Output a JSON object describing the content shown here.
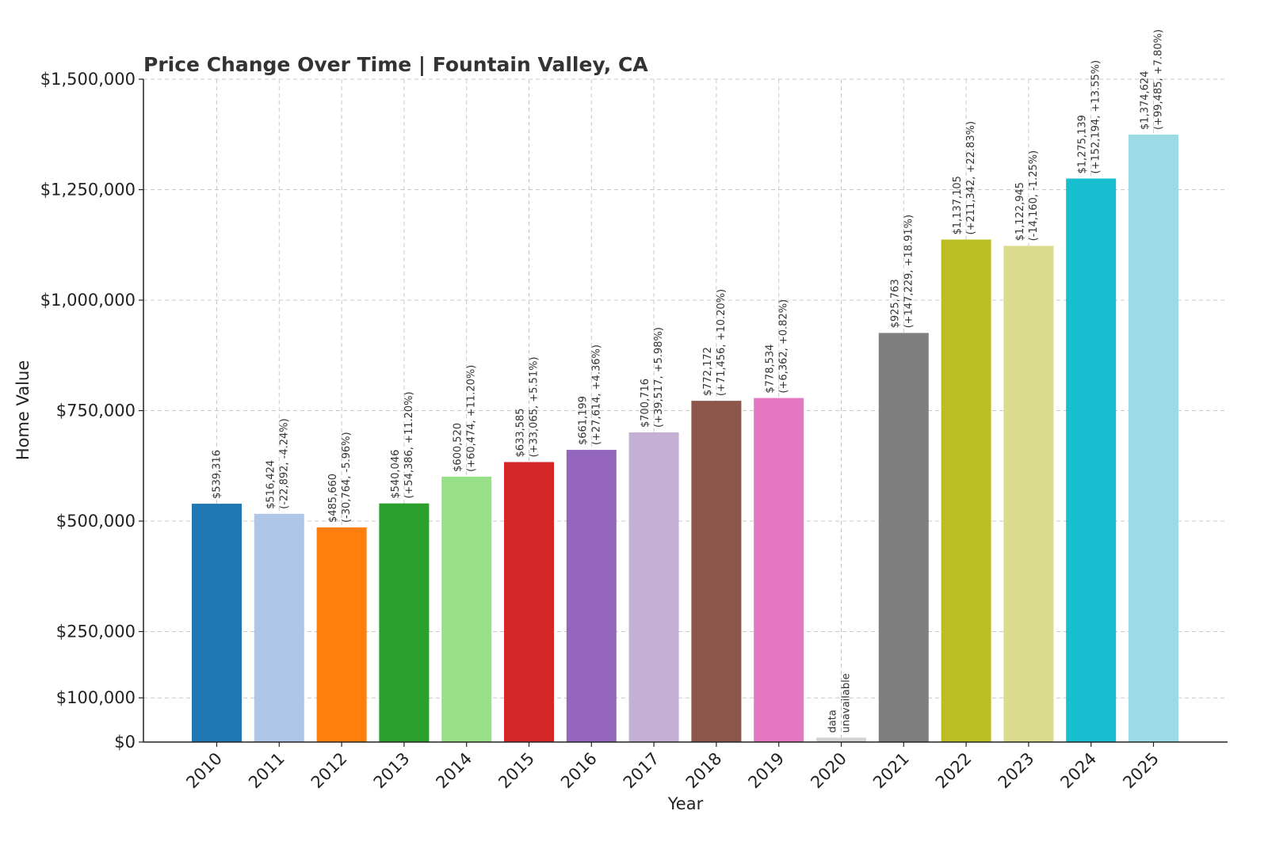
{
  "chart_data": {
    "type": "bar",
    "title": "Price Change Over Time | Fountain Valley, CA",
    "xlabel": "Year",
    "ylabel": "Home Value",
    "ylim": [
      0,
      1500000
    ],
    "yticks": [
      {
        "value": 0,
        "label": "$0"
      },
      {
        "value": 100000,
        "label": "$100,000"
      },
      {
        "value": 250000,
        "label": "$250,000"
      },
      {
        "value": 500000,
        "label": "$500,000"
      },
      {
        "value": 750000,
        "label": "$750,000"
      },
      {
        "value": 1000000,
        "label": "$1,000,000"
      },
      {
        "value": 1250000,
        "label": "$1,250,000"
      },
      {
        "value": 1500000,
        "label": "$1,500,000"
      }
    ],
    "grid": true,
    "categories": [
      "2010",
      "2011",
      "2012",
      "2013",
      "2014",
      "2015",
      "2016",
      "2017",
      "2018",
      "2019",
      "2020",
      "2021",
      "2022",
      "2023",
      "2024",
      "2025"
    ],
    "values": [
      539316,
      516424,
      485660,
      540046,
      600520,
      633585,
      661199,
      700716,
      772172,
      778534,
      null,
      925763,
      1137105,
      1122945,
      1275139,
      1374624
    ],
    "placeholder_value": 10000,
    "colors": [
      "#1f77b4",
      "#aec7e8",
      "#ff7f0e",
      "#2ca02c",
      "#98df8a",
      "#d62728",
      "#9467bd",
      "#c5b0d5",
      "#8c564b",
      "#e377c2",
      "#d3d3d3",
      "#7f7f7f",
      "#bcbd22",
      "#dbdb8d",
      "#17becf",
      "#9edae5"
    ],
    "labels": [
      [
        "$539,316"
      ],
      [
        "$516,424",
        "(-22,892, -4.24%)"
      ],
      [
        "$485,660",
        "(-30,764, -5.96%)"
      ],
      [
        "$540,046",
        "(+54,386, +11.20%)"
      ],
      [
        "$600,520",
        "(+60,474, +11.20%)"
      ],
      [
        "$633,585",
        "(+33,065, +5.51%)"
      ],
      [
        "$661,199",
        "(+27,614, +4.36%)"
      ],
      [
        "$700,716",
        "(+39,517, +5.98%)"
      ],
      [
        "$772,172",
        "(+71,456, +10.20%)"
      ],
      [
        "$778,534",
        "(+6,362, +0.82%)"
      ],
      [
        "data",
        "unavailable"
      ],
      [
        "$925,763",
        "(+147,229, +18.91%)"
      ],
      [
        "$1,137,105",
        "(+211,342, +22.83%)"
      ],
      [
        "$1,122,945",
        "(-14,160, -1.25%)"
      ],
      [
        "$1,275,139",
        "(+152,194, +13.55%)"
      ],
      [
        "$1,374,624",
        "(+99,485, +7.80%)"
      ]
    ]
  }
}
